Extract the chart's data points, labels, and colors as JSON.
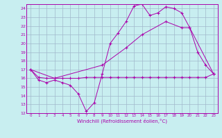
{
  "bg_color": "#c8eef0",
  "grid_color": "#a0b8cc",
  "line_color": "#aa00aa",
  "xlim": [
    -0.5,
    23.5
  ],
  "ylim": [
    12,
    24.5
  ],
  "xticks": [
    0,
    1,
    2,
    3,
    4,
    5,
    6,
    7,
    8,
    9,
    10,
    11,
    12,
    13,
    14,
    15,
    16,
    17,
    18,
    19,
    20,
    21,
    22,
    23
  ],
  "yticks": [
    12,
    13,
    14,
    15,
    16,
    17,
    18,
    19,
    20,
    21,
    22,
    23,
    24
  ],
  "xlabel": "Windchill (Refroidissement éolien,°C)",
  "line1_x": [
    0,
    1,
    2,
    3,
    4,
    5,
    6,
    7,
    8,
    9,
    10,
    11,
    12,
    13,
    14,
    15,
    16,
    17,
    18,
    19,
    20,
    21,
    22,
    23
  ],
  "line1_y": [
    17.0,
    15.8,
    15.5,
    15.8,
    15.5,
    15.2,
    14.2,
    12.2,
    13.2,
    16.5,
    20.0,
    21.2,
    22.5,
    24.3,
    24.5,
    23.2,
    23.5,
    24.2,
    24.0,
    23.5,
    21.8,
    19.0,
    17.5,
    16.5
  ],
  "line2_x": [
    0,
    1,
    2,
    3,
    4,
    5,
    6,
    7,
    8,
    9,
    10,
    11,
    12,
    13,
    14,
    15,
    16,
    17,
    18,
    19,
    20,
    21,
    22,
    23
  ],
  "line2_y": [
    17.0,
    16.1,
    16.0,
    16.0,
    16.0,
    16.0,
    16.0,
    16.1,
    16.1,
    16.1,
    16.1,
    16.1,
    16.1,
    16.1,
    16.1,
    16.1,
    16.1,
    16.1,
    16.1,
    16.1,
    16.1,
    16.1,
    16.1,
    16.5
  ],
  "line3_x": [
    0,
    3,
    9,
    12,
    14,
    17,
    19,
    20,
    23
  ],
  "line3_y": [
    17.0,
    16.0,
    17.5,
    19.5,
    21.0,
    22.5,
    21.8,
    21.8,
    16.5
  ]
}
